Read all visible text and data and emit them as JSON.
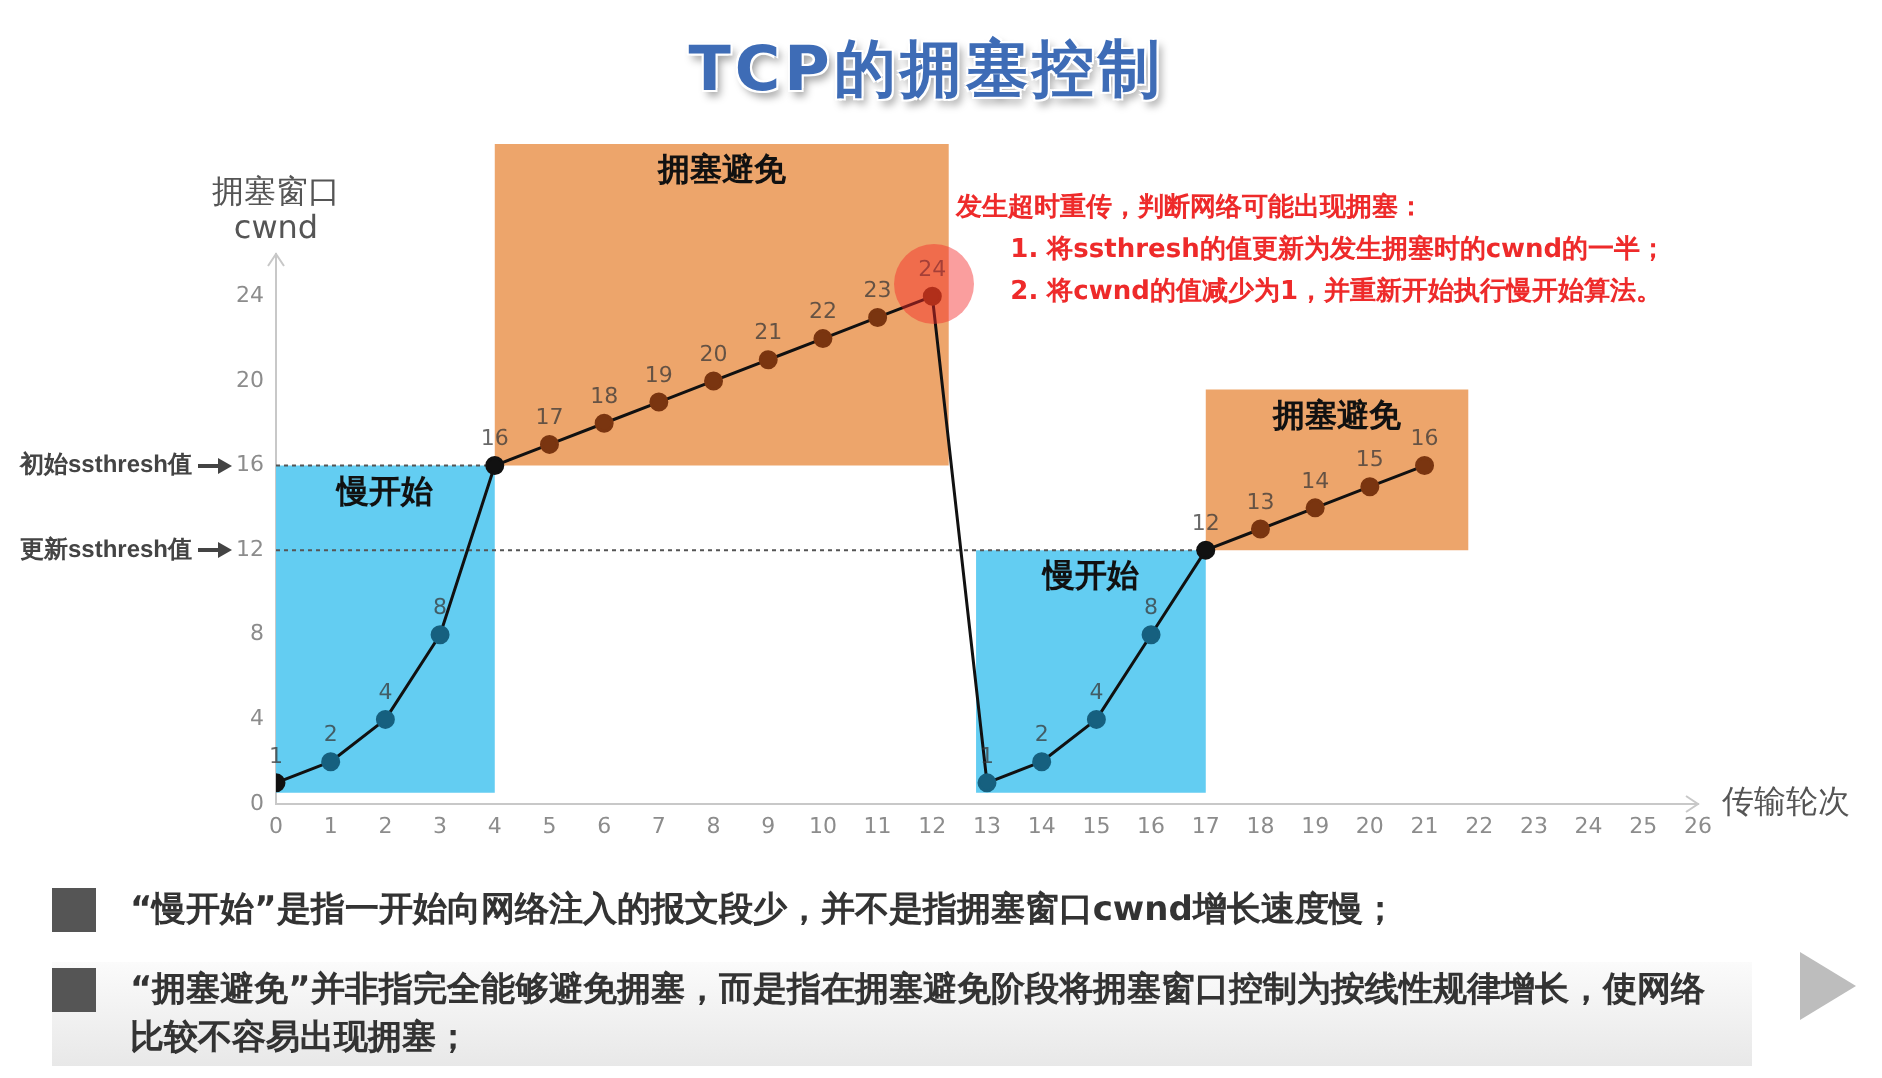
{
  "chart_data": {
    "type": "line",
    "title": "TCP的拥塞控制",
    "xlabel": "传输轮次",
    "ylabel": "拥塞窗口\ncwnd",
    "x": [
      0,
      1,
      2,
      3,
      4,
      5,
      6,
      7,
      8,
      9,
      10,
      11,
      12,
      13,
      14,
      15,
      16,
      17,
      18,
      19,
      20,
      21
    ],
    "values": [
      1,
      2,
      4,
      8,
      16,
      17,
      18,
      19,
      20,
      21,
      22,
      23,
      24,
      1,
      2,
      4,
      8,
      12,
      13,
      14,
      15,
      16
    ],
    "color": "#111111",
    "colors": [
      "#111111",
      "#16607f",
      "#16607f",
      "#16607f",
      "#111111",
      "#7a3510",
      "#7a3510",
      "#7a3510",
      "#7a3510",
      "#7a3510",
      "#7a3510",
      "#7a3510",
      "#7a3510",
      "#16607f",
      "#16607f",
      "#16607f",
      "#16607f",
      "#111111",
      "#7a3510",
      "#7a3510",
      "#7a3510",
      "#7a3510"
    ],
    "xlim": [
      0,
      26
    ],
    "xticks": [
      0,
      1,
      2,
      3,
      4,
      5,
      6,
      7,
      8,
      9,
      10,
      11,
      12,
      13,
      14,
      15,
      16,
      17,
      18,
      19,
      20,
      21,
      22,
      23,
      24,
      25,
      26
    ],
    "ylim": [
      0,
      26
    ],
    "yticks": [
      0,
      4,
      8,
      12,
      16,
      20,
      24
    ],
    "marker": "circle",
    "line_style": "solid",
    "data_labels": true,
    "grid": false,
    "legend": false,
    "ref_lines": [
      {
        "axis": "y",
        "value": 16,
        "line_style": "dotted",
        "color": "#555555"
      },
      {
        "axis": "y",
        "value": 12,
        "line_style": "dotted",
        "color": "#555555"
      }
    ],
    "bands": [
      {
        "axis": "x",
        "from": 0,
        "to": 4,
        "label": "慢开始",
        "color": "#63cdf2"
      },
      {
        "axis": "x",
        "from": 4,
        "to": 12.3,
        "label": "拥塞避免",
        "color": "#eda56b"
      },
      {
        "axis": "x",
        "from": 12.8,
        "to": 17,
        "label": "慢开始",
        "color": "#63cdf2"
      },
      {
        "axis": "x",
        "from": 17,
        "to": 21.8,
        "label": "拥塞避免",
        "color": "#eda56b"
      }
    ],
    "annotations": [
      "初始ssthresh值",
      "更新ssthresh值",
      {
        "text": "发生超时重传，判断网络可能出现拥塞：\n1. 将ssthresh的值更新为发生拥塞时的cwnd的一半；\n2. 将cwnd的值减少为1，并重新开始执行慢开始算法。",
        "x": 12,
        "y": 24
      },
      "“慢开始”是指一开始向网络注入的报文段少，并不是指拥塞窗口cwnd增长速度慢；",
      "“拥塞避免”并非指完全能够避免拥塞，而是指在拥塞避免阶段将拥塞窗口控制为按线性规律增长，使网络比较不容易出现拥塞；"
    ]
  }
}
